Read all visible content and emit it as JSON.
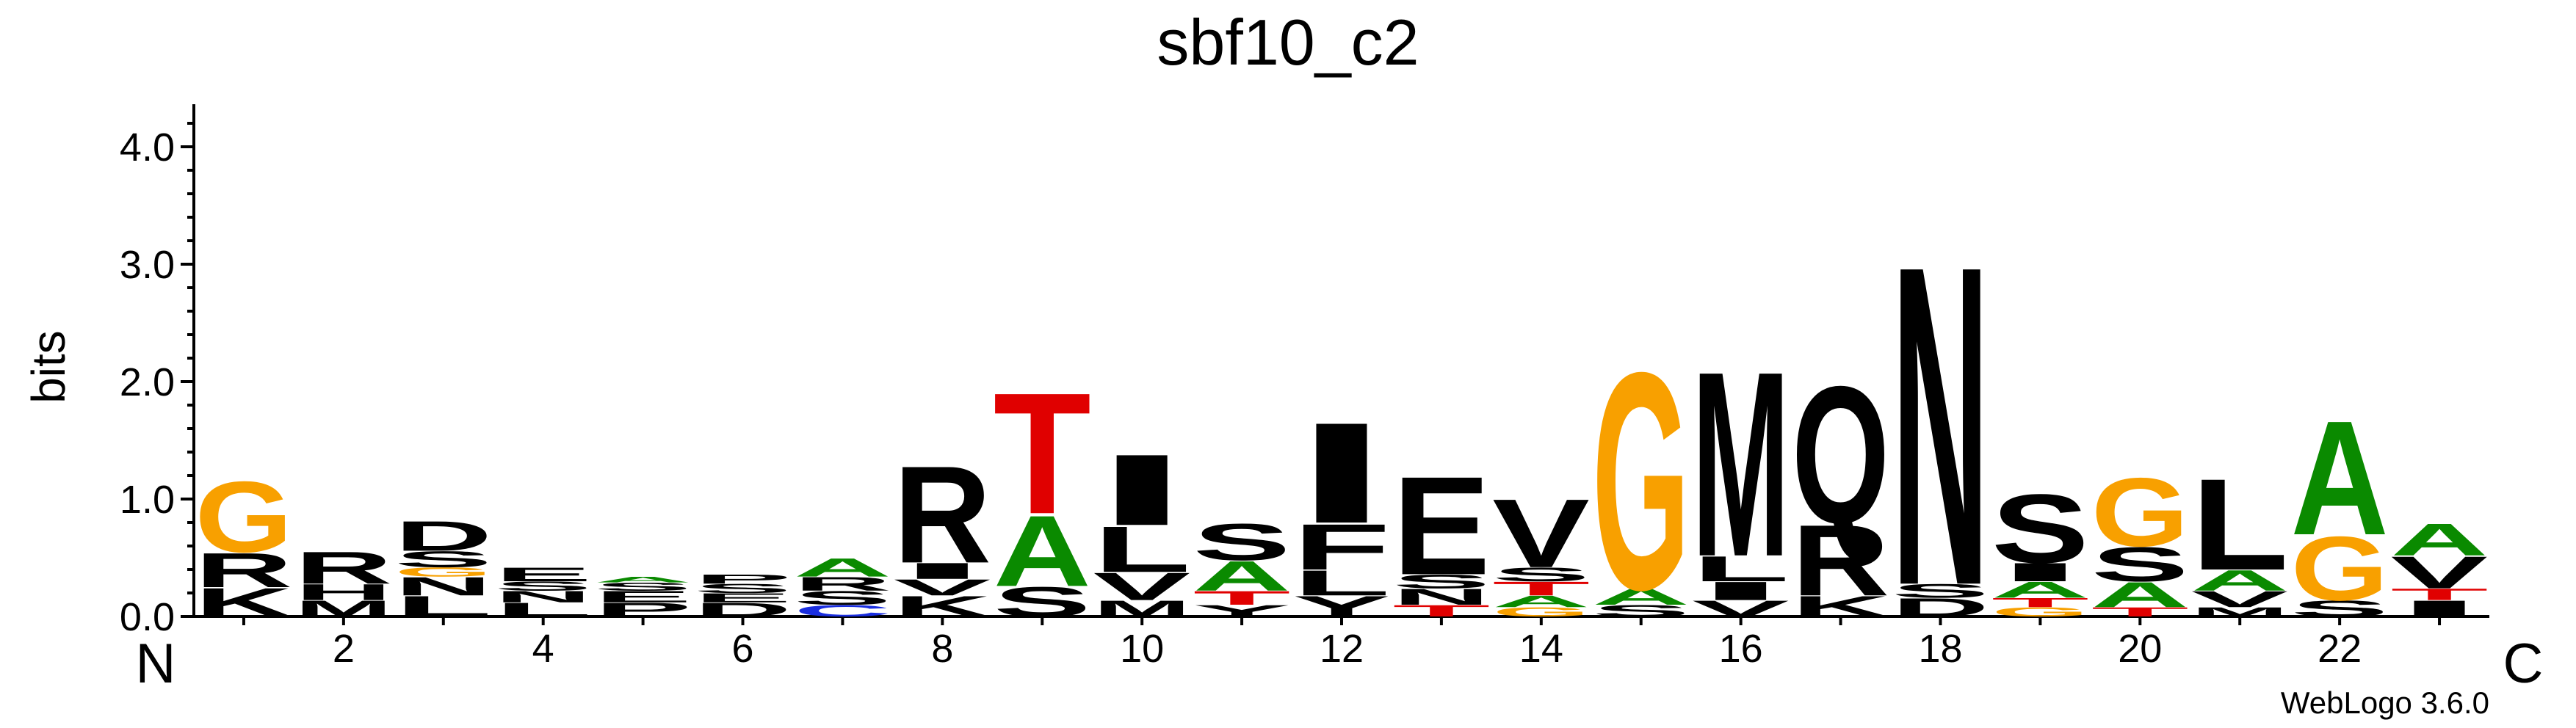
{
  "chart_data": {
    "type": "sequence-logo",
    "title": "sbf10_c2",
    "ylabel": "bits",
    "ylim": [
      0,
      4.3
    ],
    "yticks": [
      "0.0",
      "1.0",
      "2.0",
      "3.0",
      "4.0"
    ],
    "xticks": [
      "2",
      "4",
      "6",
      "8",
      "10",
      "12",
      "14",
      "16",
      "18",
      "20",
      "22"
    ],
    "n_terminal_label": "N",
    "c_terminal_label": "C",
    "credit": "WebLogo 3.6.0",
    "colors": {
      "G": "#f8a000",
      "D": "#000000",
      "S": "#000000",
      "T": "#e00000",
      "A": "#0a8a00",
      "R": "#000000",
      "K": "#000000",
      "H": "#000000",
      "L": "#000000",
      "I": "#000000",
      "V": "#000000",
      "M": "#000000",
      "F": "#000000",
      "E": "#000000",
      "Q": "#000000",
      "N": "#000000",
      "P": "#000000",
      "Y": "#000000",
      "C": "#1a2ee0",
      "W": "#000000"
    },
    "positions": [
      {
        "pos": 1,
        "stack": [
          [
            "K",
            0.25
          ],
          [
            "R",
            0.3
          ],
          [
            "G",
            0.62
          ]
        ]
      },
      {
        "pos": 2,
        "stack": [
          [
            "M",
            0.14
          ],
          [
            "H",
            0.14
          ],
          [
            "R",
            0.28
          ]
        ]
      },
      {
        "pos": 3,
        "stack": [
          [
            "L",
            0.18
          ],
          [
            "N",
            0.16
          ],
          [
            "G",
            0.08
          ],
          [
            "S",
            0.14
          ],
          [
            "D",
            0.26
          ]
        ]
      },
      {
        "pos": 4,
        "stack": [
          [
            "L",
            0.12
          ],
          [
            "N",
            0.1
          ],
          [
            "S",
            0.08
          ],
          [
            "E",
            0.12
          ]
        ]
      },
      {
        "pos": 5,
        "stack": [
          [
            "P",
            0.12
          ],
          [
            "E",
            0.1
          ],
          [
            "S",
            0.07
          ],
          [
            "A",
            0.05
          ]
        ]
      },
      {
        "pos": 6,
        "stack": [
          [
            "D",
            0.12
          ],
          [
            "E",
            0.08
          ],
          [
            "S",
            0.08
          ],
          [
            "P",
            0.08
          ]
        ]
      },
      {
        "pos": 7,
        "stack": [
          [
            "C",
            0.1
          ],
          [
            "S",
            0.12
          ],
          [
            "R",
            0.12
          ],
          [
            "A",
            0.16
          ]
        ]
      },
      {
        "pos": 8,
        "stack": [
          [
            "K",
            0.18
          ],
          [
            "V",
            0.14
          ],
          [
            "I",
            0.14
          ],
          [
            "R",
            0.85
          ]
        ]
      },
      {
        "pos": 9,
        "stack": [
          [
            "S",
            0.26
          ],
          [
            "A",
            0.62
          ],
          [
            "T",
            1.06
          ]
        ]
      },
      {
        "pos": 10,
        "stack": [
          [
            "M",
            0.14
          ],
          [
            "V",
            0.24
          ],
          [
            "L",
            0.4
          ],
          [
            "I",
            0.62
          ]
        ]
      },
      {
        "pos": 11,
        "stack": [
          [
            "Y",
            0.1
          ],
          [
            "T",
            0.12
          ],
          [
            "A",
            0.26
          ],
          [
            "S",
            0.32
          ]
        ]
      },
      {
        "pos": 12,
        "stack": [
          [
            "Y",
            0.18
          ],
          [
            "L",
            0.22
          ],
          [
            "F",
            0.4
          ],
          [
            "I",
            0.88
          ]
        ]
      },
      {
        "pos": 13,
        "stack": [
          [
            "T",
            0.1
          ],
          [
            "N",
            0.14
          ],
          [
            "S",
            0.12
          ],
          [
            "E",
            0.86
          ]
        ]
      },
      {
        "pos": 14,
        "stack": [
          [
            "G",
            0.08
          ],
          [
            "A",
            0.1
          ],
          [
            "T",
            0.12
          ],
          [
            "S",
            0.12
          ],
          [
            "V",
            0.6
          ]
        ]
      },
      {
        "pos": 15,
        "stack": [
          [
            "S",
            0.1
          ],
          [
            "A",
            0.14
          ],
          [
            "G",
            1.9
          ]
        ]
      },
      {
        "pos": 16,
        "stack": [
          [
            "V",
            0.14
          ],
          [
            "I",
            0.16
          ],
          [
            "L",
            0.22
          ],
          [
            "M",
            1.62
          ]
        ]
      },
      {
        "pos": 17,
        "stack": [
          [
            "K",
            0.18
          ],
          [
            "R",
            0.62
          ],
          [
            "Q",
            1.2
          ]
        ]
      },
      {
        "pos": 18,
        "stack": [
          [
            "D",
            0.16
          ],
          [
            "S",
            0.12
          ],
          [
            "N",
            2.8
          ]
        ]
      },
      {
        "pos": 19,
        "stack": [
          [
            "G",
            0.08
          ],
          [
            "T",
            0.08
          ],
          [
            "A",
            0.14
          ],
          [
            "I",
            0.16
          ],
          [
            "S",
            0.6
          ]
        ]
      },
      {
        "pos": 20,
        "stack": [
          [
            "T",
            0.08
          ],
          [
            "A",
            0.22
          ],
          [
            "S",
            0.3
          ],
          [
            "G",
            0.6
          ]
        ]
      },
      {
        "pos": 21,
        "stack": [
          [
            "M",
            0.08
          ],
          [
            "V",
            0.14
          ],
          [
            "A",
            0.18
          ],
          [
            "L",
            0.8
          ]
        ]
      },
      {
        "pos": 22,
        "stack": [
          [
            "S",
            0.14
          ],
          [
            "G",
            0.56
          ],
          [
            "A",
            1.0
          ]
        ]
      },
      {
        "pos": 23,
        "stack": [
          [
            "I",
            0.14
          ],
          [
            "T",
            0.1
          ],
          [
            "V",
            0.28
          ],
          [
            "A",
            0.28
          ]
        ]
      }
    ]
  }
}
